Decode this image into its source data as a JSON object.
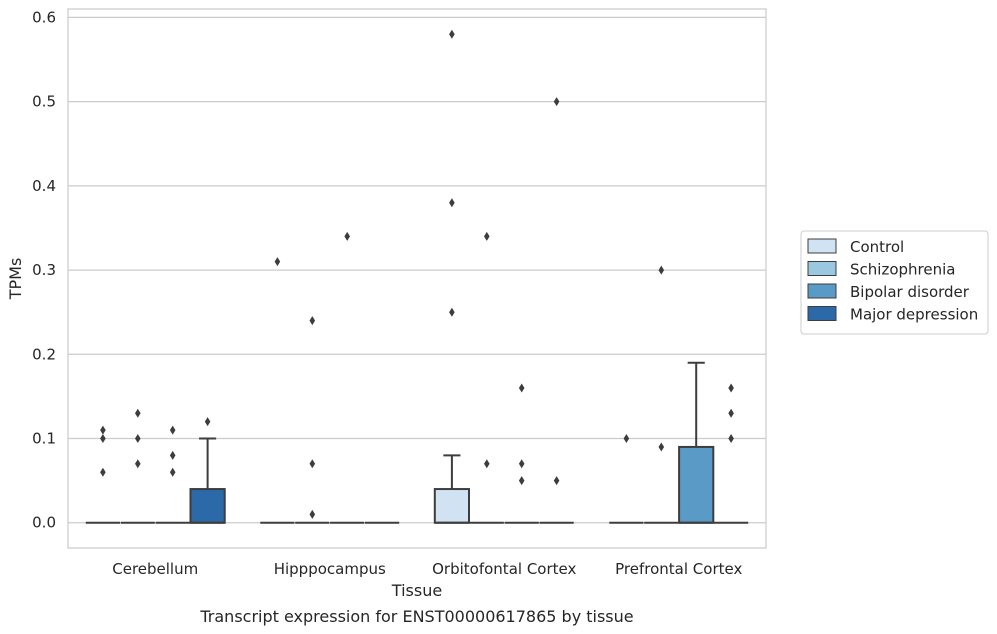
{
  "chart_data": {
    "type": "box",
    "caption": "Transcript expression for ENST00000617865 by tissue",
    "xlabel": "Tissue",
    "ylabel": "TPMs",
    "ylim": [
      -0.03,
      0.61
    ],
    "yticks": [
      0.0,
      0.1,
      0.2,
      0.3,
      0.4,
      0.5,
      0.6
    ],
    "ytick_labels": [
      "0.0",
      "0.1",
      "0.2",
      "0.3",
      "0.4",
      "0.5",
      "0.6"
    ],
    "grid": "horizontal",
    "legend_position": "right",
    "categories": [
      "Cerebellum",
      "Hipppocampus",
      "Orbitofontal Cortex",
      "Prefrontal Cortex"
    ],
    "series": [
      {
        "name": "Control",
        "color": "#d1e2f2",
        "boxes": [
          {
            "q1": 0,
            "median": 0,
            "q3": 0,
            "whisker_low": 0,
            "whisker_high": 0,
            "outliers": [
              0.06,
              0.1,
              0.11
            ]
          },
          {
            "q1": 0,
            "median": 0,
            "q3": 0,
            "whisker_low": 0,
            "whisker_high": 0,
            "outliers": [
              0.31
            ]
          },
          {
            "q1": 0,
            "median": 0,
            "q3": 0.04,
            "whisker_low": 0,
            "whisker_high": 0.08,
            "outliers": [
              0.25,
              0.38,
              0.58
            ]
          },
          {
            "q1": 0,
            "median": 0,
            "q3": 0,
            "whisker_low": 0,
            "whisker_high": 0,
            "outliers": [
              0.1
            ]
          }
        ]
      },
      {
        "name": "Schizophrenia",
        "color": "#9ac8e0",
        "boxes": [
          {
            "q1": 0,
            "median": 0,
            "q3": 0,
            "whisker_low": 0,
            "whisker_high": 0,
            "outliers": [
              0.07,
              0.1,
              0.13
            ]
          },
          {
            "q1": 0,
            "median": 0,
            "q3": 0,
            "whisker_low": 0,
            "whisker_high": 0,
            "outliers": [
              0.01,
              0.07,
              0.24
            ]
          },
          {
            "q1": 0,
            "median": 0,
            "q3": 0,
            "whisker_low": 0,
            "whisker_high": 0,
            "outliers": [
              0.07,
              0.34
            ]
          },
          {
            "q1": 0,
            "median": 0,
            "q3": 0,
            "whisker_low": 0,
            "whisker_high": 0,
            "outliers": [
              0.09,
              0.3
            ]
          }
        ]
      },
      {
        "name": "Bipolar disorder",
        "color": "#5a9ac6",
        "boxes": [
          {
            "q1": 0,
            "median": 0,
            "q3": 0,
            "whisker_low": 0,
            "whisker_high": 0,
            "outliers": [
              0.06,
              0.08,
              0.11
            ]
          },
          {
            "q1": 0,
            "median": 0,
            "q3": 0,
            "whisker_low": 0,
            "whisker_high": 0,
            "outliers": [
              0.34
            ]
          },
          {
            "q1": 0,
            "median": 0,
            "q3": 0,
            "whisker_low": 0,
            "whisker_high": 0,
            "outliers": [
              0.05,
              0.07,
              0.16
            ]
          },
          {
            "q1": 0,
            "median": 0,
            "q3": 0.09,
            "whisker_low": 0,
            "whisker_high": 0.19,
            "outliers": []
          }
        ]
      },
      {
        "name": "Major depression",
        "color": "#2b69a8",
        "boxes": [
          {
            "q1": 0,
            "median": 0,
            "q3": 0.04,
            "whisker_low": 0,
            "whisker_high": 0.1,
            "outliers": [
              0.12
            ]
          },
          {
            "q1": 0,
            "median": 0,
            "q3": 0,
            "whisker_low": 0,
            "whisker_high": 0,
            "outliers": []
          },
          {
            "q1": 0,
            "median": 0,
            "q3": 0,
            "whisker_low": 0,
            "whisker_high": 0,
            "outliers": [
              0.05,
              0.5
            ]
          },
          {
            "q1": 0,
            "median": 0,
            "q3": 0,
            "whisker_low": 0,
            "whisker_high": 0,
            "outliers": [
              0.1,
              0.13,
              0.16
            ]
          }
        ]
      }
    ]
  }
}
